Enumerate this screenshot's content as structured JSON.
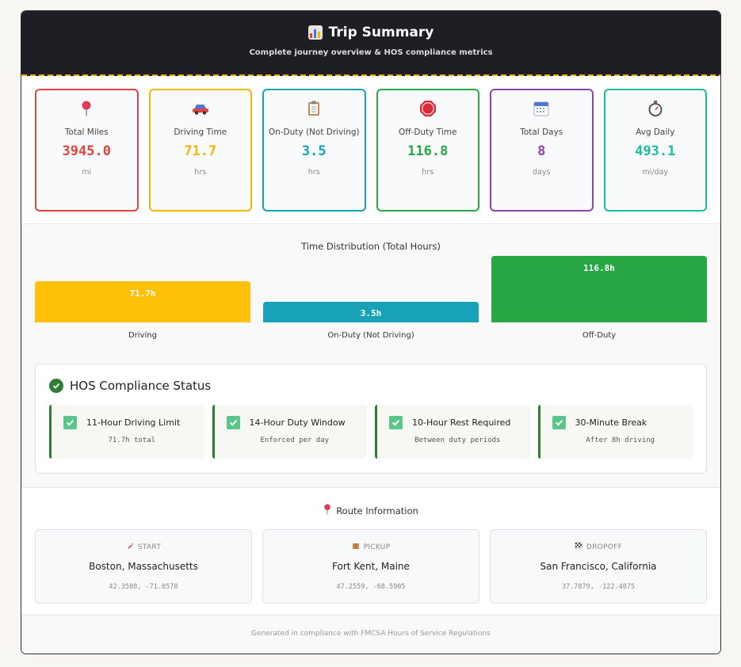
{
  "header": {
    "title": "Trip Summary",
    "title_icon": "bar-chart-icon",
    "subtitle": "Complete journey overview & HOS compliance metrics"
  },
  "metrics": [
    {
      "icon": "pushpin-icon",
      "label": "Total Miles",
      "value": "3945.0",
      "unit": "mi",
      "color": "#e0443e"
    },
    {
      "icon": "car-icon",
      "label": "Driving Time",
      "value": "71.7",
      "unit": "hrs",
      "color": "#f2b705"
    },
    {
      "icon": "clipboard-icon",
      "label": "On-Duty (Not Driving)",
      "value": "3.5",
      "unit": "hrs",
      "color": "#16a2b8"
    },
    {
      "icon": "stop-sign-icon",
      "label": "Off-Duty Time",
      "value": "116.8",
      "unit": "hrs",
      "color": "#28a745"
    },
    {
      "icon": "calendar-icon",
      "label": "Total Days",
      "value": "8",
      "unit": "days",
      "color": "#8e44ad"
    },
    {
      "icon": "stopwatch-icon",
      "label": "Avg Daily",
      "value": "493.1",
      "unit": "mi/day",
      "color": "#1abc9c"
    }
  ],
  "distribution": {
    "title": "Time Distribution (Total Hours)",
    "bars": [
      {
        "label": "Driving",
        "value_label": "71.7h",
        "value": 71.7,
        "color": "#ffc107"
      },
      {
        "label": "On-Duty (Not Driving)",
        "value_label": "3.5h",
        "value": 3.5,
        "color": "#17a2b8"
      },
      {
        "label": "Off-Duty",
        "value_label": "116.8h",
        "value": 116.8,
        "color": "#28a745"
      }
    ]
  },
  "hos": {
    "title": "HOS Compliance Status",
    "items": [
      {
        "title": "11-Hour Driving Limit",
        "detail": "71.7h total"
      },
      {
        "title": "14-Hour Duty Window",
        "detail": "Enforced per day"
      },
      {
        "title": "10-Hour Rest Required",
        "detail": "Between duty periods"
      },
      {
        "title": "30-Minute Break",
        "detail": "After 8h driving"
      }
    ]
  },
  "route": {
    "title": "Route Information",
    "stops": [
      {
        "icon": "rocket-icon",
        "kind": "START",
        "place": "Boston, Massachusetts",
        "coords": "42.3588, -71.0578"
      },
      {
        "icon": "package-icon",
        "kind": "PICKUP",
        "place": "Fort Kent, Maine",
        "coords": "47.2559, -68.5905"
      },
      {
        "icon": "checkered-flag-icon",
        "kind": "DROPOFF",
        "place": "San Francisco, California",
        "coords": "37.7879, -122.4075"
      }
    ]
  },
  "footer": {
    "text": "Generated in compliance with FMCSA Hours of Service Regulations"
  }
}
